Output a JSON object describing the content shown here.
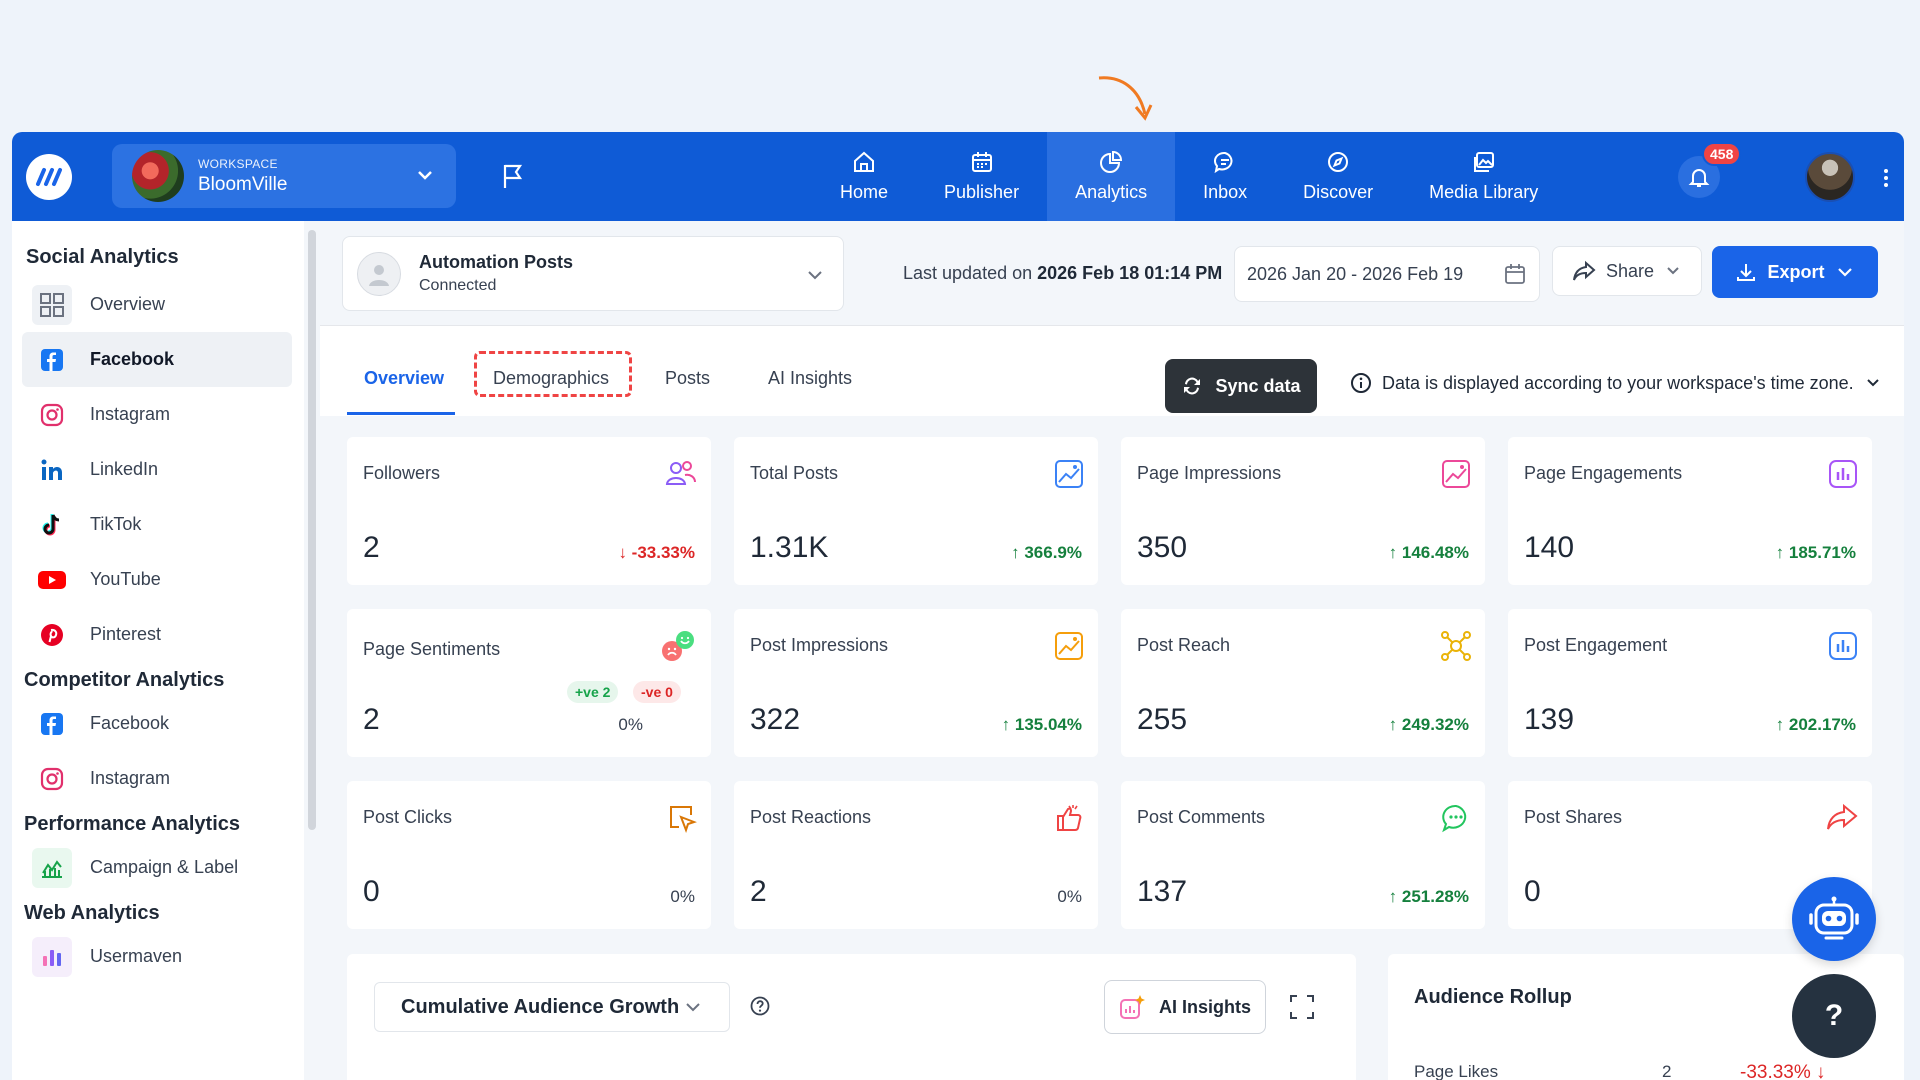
{
  "topbar": {
    "workspace_caption": "WORKSPACE",
    "workspace_name": "BloomVille",
    "nav": [
      {
        "label": "Home",
        "icon": "home-icon"
      },
      {
        "label": "Publisher",
        "icon": "calendar-icon"
      },
      {
        "label": "Analytics",
        "icon": "pie-chart-icon",
        "active": true
      },
      {
        "label": "Inbox",
        "icon": "chat-icon"
      },
      {
        "label": "Discover",
        "icon": "compass-icon"
      },
      {
        "label": "Media Library",
        "icon": "image-icon"
      }
    ],
    "notification_count": "458"
  },
  "sidebar": {
    "sections": [
      {
        "title": "Social Analytics",
        "items": [
          "Overview",
          "Facebook",
          "Instagram",
          "LinkedIn",
          "TikTok",
          "YouTube",
          "Pinterest"
        ]
      },
      {
        "title": "Competitor Analytics",
        "items": [
          "Facebook",
          "Instagram"
        ]
      },
      {
        "title": "Performance Analytics",
        "items": [
          "Campaign & Label"
        ]
      },
      {
        "title": "Web Analytics",
        "items": [
          "Usermaven"
        ]
      }
    ],
    "active_item": "Facebook"
  },
  "header": {
    "account_name": "Automation Posts",
    "account_status": "Connected",
    "last_updated_prefix": "Last updated on",
    "last_updated_value": "2026 Feb 18 01:14 PM",
    "date_range": "2026 Jan 20 - 2026 Feb 19",
    "share_label": "Share",
    "export_label": "Export"
  },
  "tabs": {
    "items": [
      "Overview",
      "Demographics",
      "Posts",
      "AI Insights"
    ],
    "active": "Overview",
    "sync_label": "Sync data",
    "timezone_note": "Data is displayed according to your workspace's time zone."
  },
  "cards": [
    {
      "title": "Followers",
      "value": "2",
      "change": "-33.33%",
      "dir": "down",
      "icon": "users-icon",
      "color": "#8b5cf6"
    },
    {
      "title": "Total Posts",
      "value": "1.31K",
      "change": "366.9%",
      "dir": "up",
      "icon": "image-chart-icon",
      "color": "#3b82f6"
    },
    {
      "title": "Page Impressions",
      "value": "350",
      "change": "146.48%",
      "dir": "up",
      "icon": "image-chart-icon",
      "color": "#ec4899"
    },
    {
      "title": "Page Engagements",
      "value": "140",
      "change": "185.71%",
      "dir": "up",
      "icon": "bar-chart-icon",
      "color": "#a855f7"
    },
    {
      "title": "Page Sentiments",
      "value": "2",
      "change": "0%",
      "dir": "neutral",
      "icon": "sentiment-icon",
      "color": "#22c55e",
      "positive": "+ve 2",
      "negative": "-ve 0"
    },
    {
      "title": "Post Impressions",
      "value": "322",
      "change": "135.04%",
      "dir": "up",
      "icon": "image-chart-icon",
      "color": "#f59e0b"
    },
    {
      "title": "Post Reach",
      "value": "255",
      "change": "249.32%",
      "dir": "up",
      "icon": "network-icon",
      "color": "#eab308"
    },
    {
      "title": "Post Engagement",
      "value": "139",
      "change": "202.17%",
      "dir": "up",
      "icon": "bar-chart-icon",
      "color": "#3b82f6"
    },
    {
      "title": "Post Clicks",
      "value": "0",
      "change": "0%",
      "dir": "neutral",
      "icon": "cursor-click-icon",
      "color": "#d97706"
    },
    {
      "title": "Post Reactions",
      "value": "2",
      "change": "0%",
      "dir": "neutral",
      "icon": "thumbs-up-icon",
      "color": "#ef4444"
    },
    {
      "title": "Post Comments",
      "value": "137",
      "change": "251.28%",
      "dir": "up",
      "icon": "comment-icon",
      "color": "#22c55e"
    },
    {
      "title": "Post Shares",
      "value": "0",
      "change": "",
      "dir": "neutral",
      "icon": "share-arrow-icon",
      "color": "#ef4444"
    }
  ],
  "growth": {
    "select_label": "Cumulative Audience Growth",
    "ai_label": "AI Insights"
  },
  "rollup": {
    "title": "Audience Rollup",
    "row_label": "Page Likes",
    "row_value": "2",
    "row_change": "-33.33%"
  },
  "fab": {
    "help": "?"
  }
}
